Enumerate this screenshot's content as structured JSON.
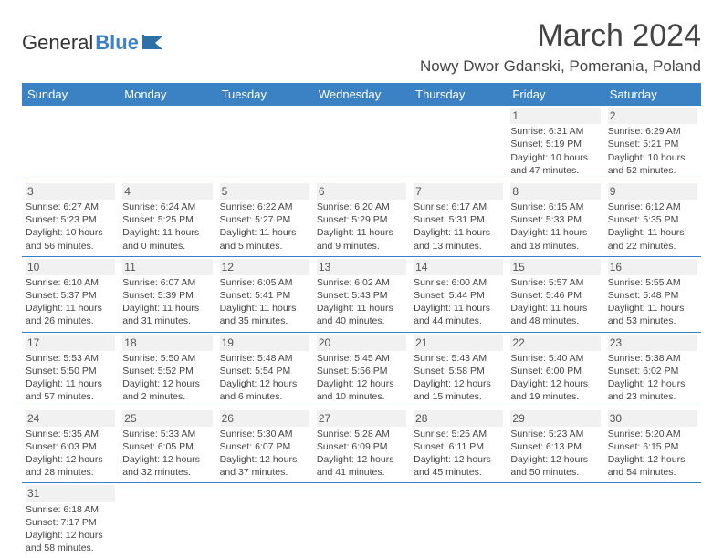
{
  "logo": {
    "general": "General",
    "blue": "Blue"
  },
  "title": "March 2024",
  "location": "Nowy Dwor Gdanski, Pomerania, Poland",
  "headers": [
    "Sunday",
    "Monday",
    "Tuesday",
    "Wednesday",
    "Thursday",
    "Friday",
    "Saturday"
  ],
  "colors": {
    "accent": "#3b82c4",
    "bg": "#ffffff",
    "text": "#444444"
  },
  "weeks": [
    [
      null,
      null,
      null,
      null,
      null,
      {
        "n": "1",
        "sr": "Sunrise: 6:31 AM",
        "ss": "Sunset: 5:19 PM",
        "dl": "Daylight: 10 hours and 47 minutes."
      },
      {
        "n": "2",
        "sr": "Sunrise: 6:29 AM",
        "ss": "Sunset: 5:21 PM",
        "dl": "Daylight: 10 hours and 52 minutes."
      }
    ],
    [
      {
        "n": "3",
        "sr": "Sunrise: 6:27 AM",
        "ss": "Sunset: 5:23 PM",
        "dl": "Daylight: 10 hours and 56 minutes."
      },
      {
        "n": "4",
        "sr": "Sunrise: 6:24 AM",
        "ss": "Sunset: 5:25 PM",
        "dl": "Daylight: 11 hours and 0 minutes."
      },
      {
        "n": "5",
        "sr": "Sunrise: 6:22 AM",
        "ss": "Sunset: 5:27 PM",
        "dl": "Daylight: 11 hours and 5 minutes."
      },
      {
        "n": "6",
        "sr": "Sunrise: 6:20 AM",
        "ss": "Sunset: 5:29 PM",
        "dl": "Daylight: 11 hours and 9 minutes."
      },
      {
        "n": "7",
        "sr": "Sunrise: 6:17 AM",
        "ss": "Sunset: 5:31 PM",
        "dl": "Daylight: 11 hours and 13 minutes."
      },
      {
        "n": "8",
        "sr": "Sunrise: 6:15 AM",
        "ss": "Sunset: 5:33 PM",
        "dl": "Daylight: 11 hours and 18 minutes."
      },
      {
        "n": "9",
        "sr": "Sunrise: 6:12 AM",
        "ss": "Sunset: 5:35 PM",
        "dl": "Daylight: 11 hours and 22 minutes."
      }
    ],
    [
      {
        "n": "10",
        "sr": "Sunrise: 6:10 AM",
        "ss": "Sunset: 5:37 PM",
        "dl": "Daylight: 11 hours and 26 minutes."
      },
      {
        "n": "11",
        "sr": "Sunrise: 6:07 AM",
        "ss": "Sunset: 5:39 PM",
        "dl": "Daylight: 11 hours and 31 minutes."
      },
      {
        "n": "12",
        "sr": "Sunrise: 6:05 AM",
        "ss": "Sunset: 5:41 PM",
        "dl": "Daylight: 11 hours and 35 minutes."
      },
      {
        "n": "13",
        "sr": "Sunrise: 6:02 AM",
        "ss": "Sunset: 5:43 PM",
        "dl": "Daylight: 11 hours and 40 minutes."
      },
      {
        "n": "14",
        "sr": "Sunrise: 6:00 AM",
        "ss": "Sunset: 5:44 PM",
        "dl": "Daylight: 11 hours and 44 minutes."
      },
      {
        "n": "15",
        "sr": "Sunrise: 5:57 AM",
        "ss": "Sunset: 5:46 PM",
        "dl": "Daylight: 11 hours and 48 minutes."
      },
      {
        "n": "16",
        "sr": "Sunrise: 5:55 AM",
        "ss": "Sunset: 5:48 PM",
        "dl": "Daylight: 11 hours and 53 minutes."
      }
    ],
    [
      {
        "n": "17",
        "sr": "Sunrise: 5:53 AM",
        "ss": "Sunset: 5:50 PM",
        "dl": "Daylight: 11 hours and 57 minutes."
      },
      {
        "n": "18",
        "sr": "Sunrise: 5:50 AM",
        "ss": "Sunset: 5:52 PM",
        "dl": "Daylight: 12 hours and 2 minutes."
      },
      {
        "n": "19",
        "sr": "Sunrise: 5:48 AM",
        "ss": "Sunset: 5:54 PM",
        "dl": "Daylight: 12 hours and 6 minutes."
      },
      {
        "n": "20",
        "sr": "Sunrise: 5:45 AM",
        "ss": "Sunset: 5:56 PM",
        "dl": "Daylight: 12 hours and 10 minutes."
      },
      {
        "n": "21",
        "sr": "Sunrise: 5:43 AM",
        "ss": "Sunset: 5:58 PM",
        "dl": "Daylight: 12 hours and 15 minutes."
      },
      {
        "n": "22",
        "sr": "Sunrise: 5:40 AM",
        "ss": "Sunset: 6:00 PM",
        "dl": "Daylight: 12 hours and 19 minutes."
      },
      {
        "n": "23",
        "sr": "Sunrise: 5:38 AM",
        "ss": "Sunset: 6:02 PM",
        "dl": "Daylight: 12 hours and 23 minutes."
      }
    ],
    [
      {
        "n": "24",
        "sr": "Sunrise: 5:35 AM",
        "ss": "Sunset: 6:03 PM",
        "dl": "Daylight: 12 hours and 28 minutes."
      },
      {
        "n": "25",
        "sr": "Sunrise: 5:33 AM",
        "ss": "Sunset: 6:05 PM",
        "dl": "Daylight: 12 hours and 32 minutes."
      },
      {
        "n": "26",
        "sr": "Sunrise: 5:30 AM",
        "ss": "Sunset: 6:07 PM",
        "dl": "Daylight: 12 hours and 37 minutes."
      },
      {
        "n": "27",
        "sr": "Sunrise: 5:28 AM",
        "ss": "Sunset: 6:09 PM",
        "dl": "Daylight: 12 hours and 41 minutes."
      },
      {
        "n": "28",
        "sr": "Sunrise: 5:25 AM",
        "ss": "Sunset: 6:11 PM",
        "dl": "Daylight: 12 hours and 45 minutes."
      },
      {
        "n": "29",
        "sr": "Sunrise: 5:23 AM",
        "ss": "Sunset: 6:13 PM",
        "dl": "Daylight: 12 hours and 50 minutes."
      },
      {
        "n": "30",
        "sr": "Sunrise: 5:20 AM",
        "ss": "Sunset: 6:15 PM",
        "dl": "Daylight: 12 hours and 54 minutes."
      }
    ],
    [
      {
        "n": "31",
        "sr": "Sunrise: 6:18 AM",
        "ss": "Sunset: 7:17 PM",
        "dl": "Daylight: 12 hours and 58 minutes."
      },
      null,
      null,
      null,
      null,
      null,
      null
    ]
  ]
}
